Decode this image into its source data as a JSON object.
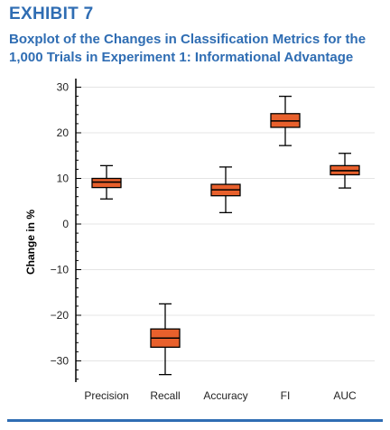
{
  "exhibit": {
    "label": "EXHIBIT 7"
  },
  "colors": {
    "accent": "#2f6db3",
    "box_fill": "#e8602c",
    "grid": "#e4e4e4",
    "text": "#222222"
  },
  "chart_data": {
    "type": "boxplot",
    "title": "Boxplot of the Changes in Classification Metrics for the 1,000 Trials in Experiment 1: Informational Advantage",
    "xlabel": "",
    "ylabel": "Change in %",
    "ylim": [
      -35,
      32
    ],
    "yticks": [
      30,
      20,
      10,
      0,
      -10,
      -20,
      -30
    ],
    "ytick_labels": [
      "30",
      "20",
      "10",
      "0",
      "−10",
      "−20",
      "−30"
    ],
    "grid": true,
    "categories": [
      "Precision",
      "Recall",
      "Accuracy",
      "FI",
      "AUC"
    ],
    "boxes": [
      {
        "name": "Precision",
        "min": 5.5,
        "q1": 8.0,
        "median": 9.2,
        "q3": 10.0,
        "max": 12.8
      },
      {
        "name": "Recall",
        "min": -33.0,
        "q1": -27.0,
        "median": -25.0,
        "q3": -23.0,
        "max": -17.5
      },
      {
        "name": "Accuracy",
        "min": 2.5,
        "q1": 6.2,
        "median": 7.5,
        "q3": 8.7,
        "max": 12.5
      },
      {
        "name": "FI",
        "min": 17.2,
        "q1": 21.2,
        "median": 22.6,
        "q3": 24.2,
        "max": 28.0
      },
      {
        "name": "AUC",
        "min": 7.9,
        "q1": 10.8,
        "median": 11.7,
        "q3": 12.8,
        "max": 15.5
      }
    ]
  }
}
